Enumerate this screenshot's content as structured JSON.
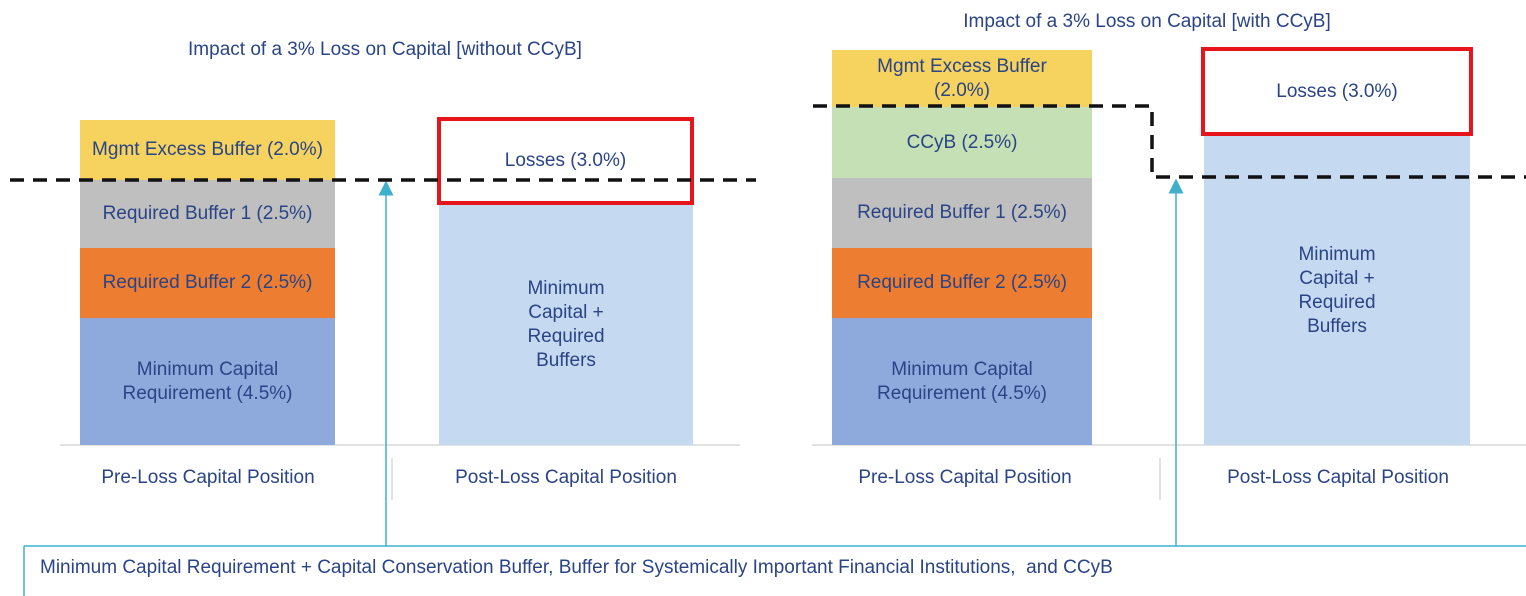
{
  "panels": [
    {
      "title": "Impact of a 3% Loss on Capital [without  CCyB]",
      "pre_loss": {
        "label": "Pre-Loss Capital Position",
        "segments": [
          "Mgmt Excess Buffer (2.0%)",
          "Required Buffer 1 (2.5%)",
          "Required Buffer 2 (2.5%)",
          "Minimum Capital Requirement (4.5%)"
        ]
      },
      "post_loss": {
        "label": "Post-Loss Capital Position",
        "losses": "Losses (3.0%)",
        "remaining": "Minimum Capital + Required Buffers"
      }
    },
    {
      "title": "Impact of a 3% Loss on Capital [with CCyB]",
      "pre_loss": {
        "label": "Pre-Loss Capital Position",
        "segments": [
          "Mgmt Excess Buffer (2.0%)",
          "CCyB (2.5%)",
          "Required Buffer 1 (2.5%)",
          "Required Buffer 2 (2.5%)",
          "Minimum Capital Requirement (4.5%)"
        ]
      },
      "post_loss": {
        "label": "Post-Loss Capital Position",
        "losses": "Losses (3.0%)",
        "remaining": "Minimum Capital + Required Buffers"
      }
    }
  ],
  "footnote": "Minimum Capital Requirement + Capital Conservation Buffer, Buffer for Systemically Important Financial Institutions,  and CCyB"
}
